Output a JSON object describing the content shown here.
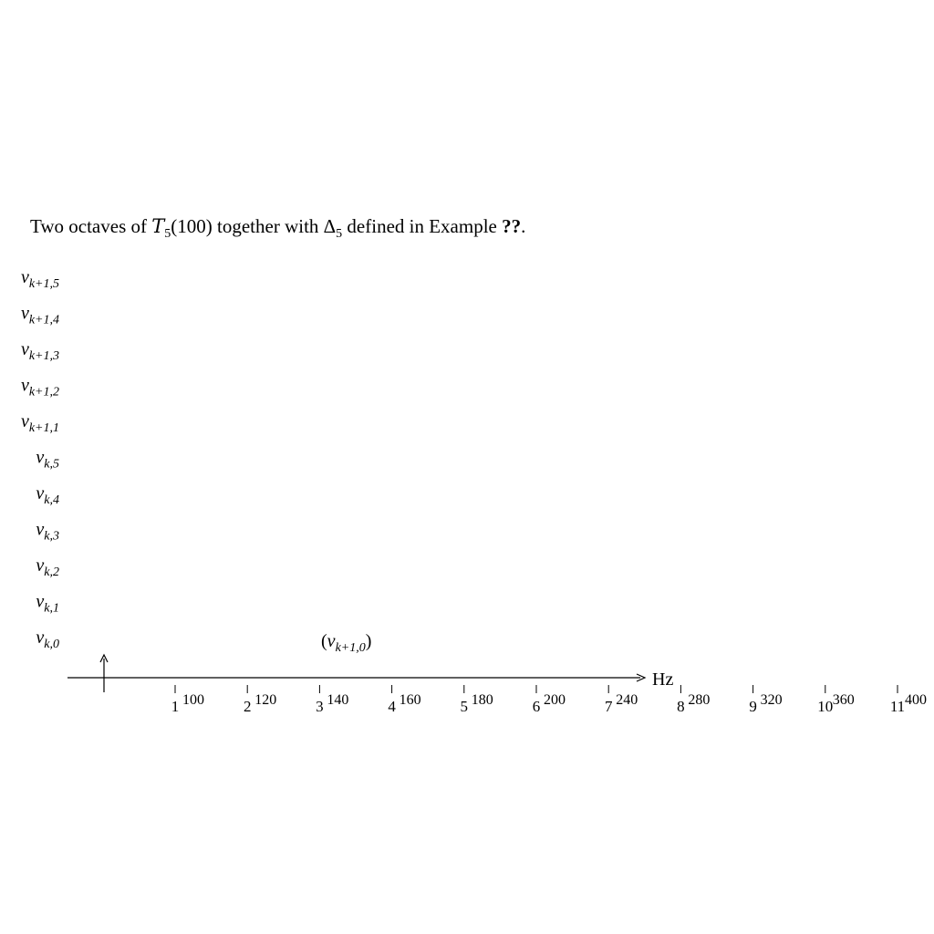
{
  "caption": {
    "prefix": "Two octaves of ",
    "T_symbol": "T",
    "T_subscript": "5",
    "T_argument": "(100)",
    "middle": " together with Δ",
    "delta_subscript": "5",
    "suffix": " defined in Example ",
    "ref": "??",
    "end": "."
  },
  "axis_unit": "Hz",
  "vertical_labels": [
    {
      "var": "v",
      "sub": "k+1,5"
    },
    {
      "var": "v",
      "sub": "k+1,4"
    },
    {
      "var": "v",
      "sub": "k+1,3"
    },
    {
      "var": "v",
      "sub": "k+1,2"
    },
    {
      "var": "v",
      "sub": "k+1,1"
    },
    {
      "var": "v",
      "sub": "k,5"
    },
    {
      "var": "v",
      "sub": "k,4"
    },
    {
      "var": "v",
      "sub": "k,3"
    },
    {
      "var": "v",
      "sub": "k,2"
    },
    {
      "var": "v",
      "sub": "k,1"
    },
    {
      "var": "v",
      "sub": "k,0"
    }
  ],
  "point_label": {
    "open": "(",
    "var": "v",
    "sub": "k+1,0",
    "close": ")"
  },
  "ticks": [
    {
      "index": "1",
      "hz": "100"
    },
    {
      "index": "2",
      "hz": "120"
    },
    {
      "index": "3",
      "hz": "140"
    },
    {
      "index": "4",
      "hz": "160"
    },
    {
      "index": "5",
      "hz": "180"
    },
    {
      "index": "6",
      "hz": "200"
    },
    {
      "index": "7",
      "hz": "240"
    },
    {
      "index": "8",
      "hz": "280"
    },
    {
      "index": "9",
      "hz": "320"
    },
    {
      "index": "10",
      "hz": "360"
    },
    {
      "index": "11",
      "hz": "400"
    }
  ]
}
